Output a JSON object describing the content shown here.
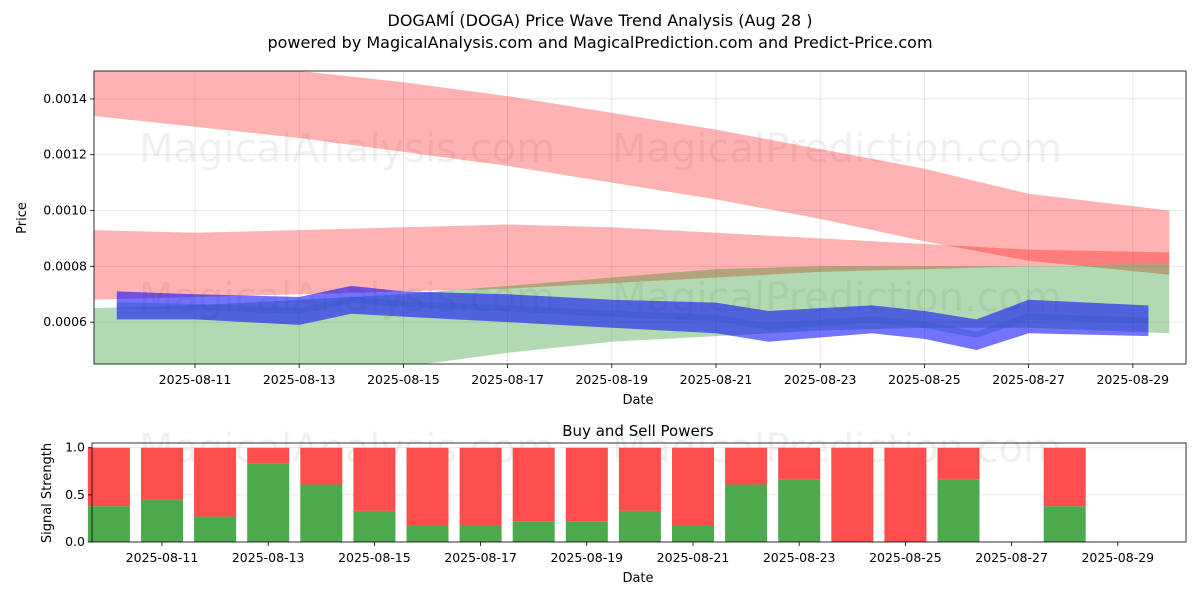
{
  "title": "DOGAMÍ (DOGA) Price Wave Trend Analysis (Aug 28 )",
  "subtitle": "powered by MagicalAnalysis.com and MagicalPrediction.com and Predict-Price.com",
  "watermarks": [
    "MagicalAnalysis.com",
    "MagicalPrediction.com"
  ],
  "colors": {
    "red": "#ff0000",
    "green": "#008000",
    "blue": "#0000ff",
    "buy": "#4caa4c",
    "sell": "#ff4c4c"
  },
  "chart_data": [
    {
      "type": "area",
      "xlabel": "Date",
      "ylabel": "Price",
      "ylim": [
        0.00045,
        0.0015
      ],
      "yticks": [
        "0.0006",
        "0.0008",
        "0.0010",
        "0.0012",
        "0.0014"
      ],
      "xticks": [
        "2025-08-11",
        "2025-08-13",
        "2025-08-15",
        "2025-08-17",
        "2025-08-19",
        "2025-08-21",
        "2025-08-23",
        "2025-08-25",
        "2025-08-27",
        "2025-08-29"
      ],
      "grid": true,
      "bands": [
        {
          "color": "red",
          "x": [
            "2025-08-09",
            "2025-08-11",
            "2025-08-13",
            "2025-08-15",
            "2025-08-17",
            "2025-08-19",
            "2025-08-21",
            "2025-08-23",
            "2025-08-25",
            "2025-08-27",
            "2025-08-29.7"
          ],
          "upper": [
            0.00152,
            0.00153,
            0.0015,
            0.00146,
            0.00141,
            0.00135,
            0.00129,
            0.00122,
            0.00115,
            0.00106,
            0.001
          ],
          "lower": [
            0.00134,
            0.0013,
            0.00126,
            0.00121,
            0.00116,
            0.0011,
            0.00104,
            0.00097,
            0.00089,
            0.00082,
            0.00077
          ]
        },
        {
          "color": "red",
          "x": [
            "2025-08-09",
            "2025-08-11",
            "2025-08-13",
            "2025-08-15",
            "2025-08-17",
            "2025-08-19",
            "2025-08-21",
            "2025-08-23",
            "2025-08-25",
            "2025-08-27",
            "2025-08-29.7"
          ],
          "upper": [
            0.00093,
            0.00092,
            0.00093,
            0.00094,
            0.00095,
            0.00094,
            0.00092,
            0.0009,
            0.00088,
            0.00086,
            0.00085
          ],
          "lower": [
            0.00068,
            0.00069,
            0.0007,
            0.00071,
            0.00072,
            0.00074,
            0.00076,
            0.00078,
            0.00079,
            0.0008,
            0.00081
          ]
        },
        {
          "color": "green",
          "x": [
            "2025-08-09",
            "2025-08-11",
            "2025-08-13",
            "2025-08-15",
            "2025-08-17",
            "2025-08-19",
            "2025-08-21",
            "2025-08-23",
            "2025-08-25",
            "2025-08-27",
            "2025-08-29.7"
          ],
          "upper": [
            0.00065,
            0.00066,
            0.00068,
            0.0007,
            0.00073,
            0.00076,
            0.00079,
            0.0008,
            0.0008,
            0.0008,
            0.00081
          ],
          "lower": [
            0.00035,
            0.0004,
            0.00042,
            0.00044,
            0.00049,
            0.00053,
            0.00055,
            0.00057,
            0.00058,
            0.00058,
            0.00056
          ]
        },
        {
          "color": "blue",
          "x": [
            "2025-08-09.5",
            "2025-08-11",
            "2025-08-13",
            "2025-08-14",
            "2025-08-15",
            "2025-08-17",
            "2025-08-19",
            "2025-08-21",
            "2025-08-22",
            "2025-08-24",
            "2025-08-25",
            "2025-08-26",
            "2025-08-27",
            "2025-08-29.3"
          ],
          "upper": [
            0.00071,
            0.0007,
            0.00069,
            0.00073,
            0.00071,
            0.0007,
            0.00068,
            0.00067,
            0.00064,
            0.00066,
            0.00064,
            0.00061,
            0.00068,
            0.00066
          ],
          "lower": [
            0.00061,
            0.00061,
            0.00059,
            0.00063,
            0.00062,
            0.0006,
            0.00058,
            0.00056,
            0.00053,
            0.00056,
            0.00054,
            0.0005,
            0.00056,
            0.00055
          ]
        }
      ]
    },
    {
      "type": "bar",
      "title": "Buy and Sell Powers",
      "xlabel": "Date",
      "ylabel": "Signal Strength",
      "ylim": [
        0,
        1.05
      ],
      "yticks": [
        "0.0",
        "0.5",
        "1.0"
      ],
      "xticks": [
        "2025-08-11",
        "2025-08-13",
        "2025-08-15",
        "2025-08-17",
        "2025-08-19",
        "2025-08-21",
        "2025-08-23",
        "2025-08-25",
        "2025-08-27",
        "2025-08-29"
      ],
      "categories": [
        "2025-08-10",
        "2025-08-11",
        "2025-08-12",
        "2025-08-13",
        "2025-08-14",
        "2025-08-15",
        "2025-08-16",
        "2025-08-17",
        "2025-08-18",
        "2025-08-19",
        "2025-08-20",
        "2025-08-21",
        "2025-08-22",
        "2025-08-23",
        "2025-08-24",
        "2025-08-25",
        "2025-08-26",
        "2025-08-28"
      ],
      "buy": [
        0.38,
        0.45,
        0.27,
        0.83,
        0.61,
        0.33,
        0.17,
        0.17,
        0.22,
        0.22,
        0.33,
        0.17,
        0.61,
        0.66,
        0,
        0,
        0.66,
        0.38
      ],
      "sell": [
        0.62,
        0.55,
        0.73,
        0.17,
        0.39,
        0.67,
        0.83,
        0.83,
        0.78,
        0.78,
        0.67,
        0.83,
        0.39,
        0.34,
        1,
        1,
        0.34,
        0.62
      ]
    }
  ]
}
